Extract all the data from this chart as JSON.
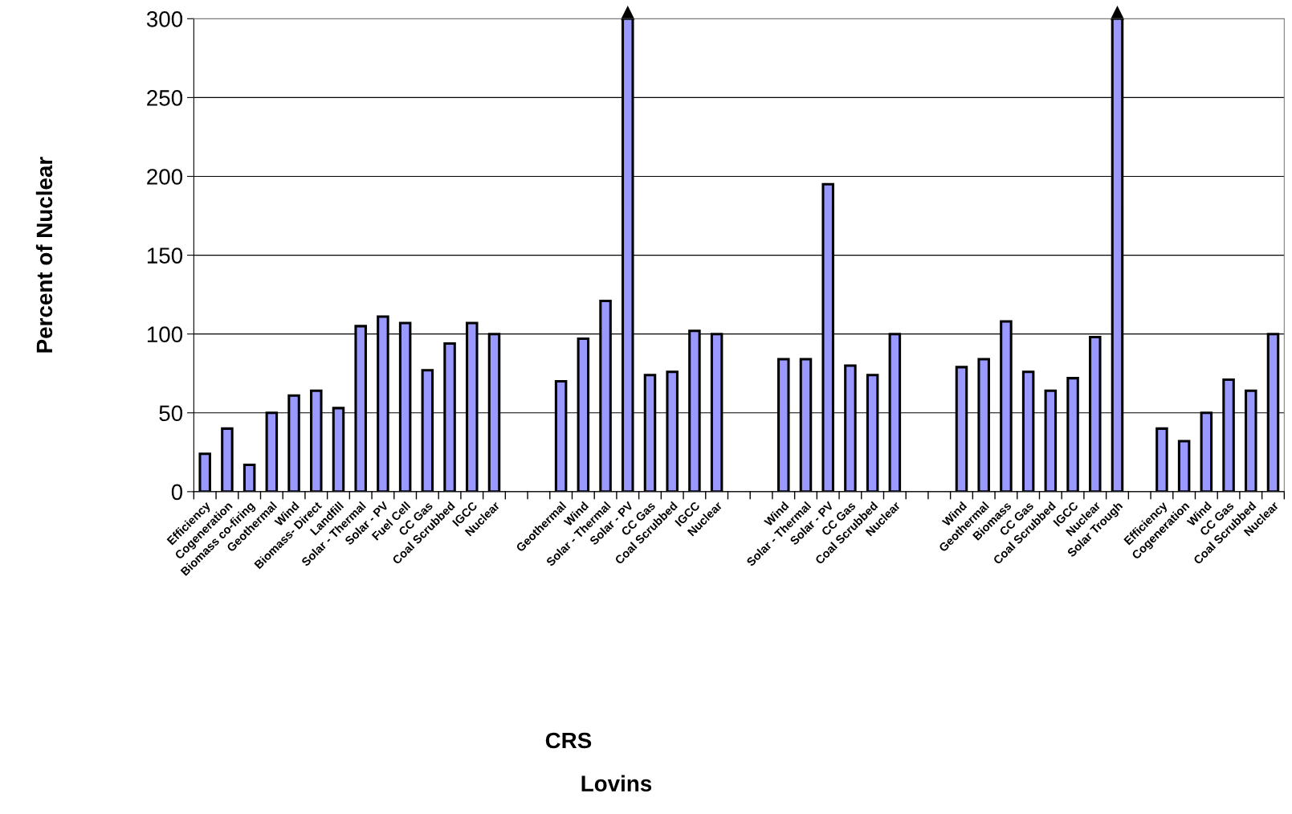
{
  "chart_data": {
    "type": "bar",
    "ylabel": "Percent of Nuclear",
    "categories": [
      "Efficiency",
      "Cogeneration",
      "Biomass co-firing",
      "Geothermal",
      "Wind",
      "Biomass- Direct",
      "Landfill",
      "Solar - Thermal",
      "Solar - PV",
      "Fuel Cell",
      "CC Gas",
      "Coal Scrubbed",
      "IGCC",
      "Nuclear",
      null,
      null,
      "Geothermal",
      "Wind",
      "Solar - Thermal",
      "Solar - PV",
      "CC Gas",
      "Coal Scrubbed",
      "IGCC",
      "Nuclear",
      null,
      null,
      "Wind",
      "Solar - Thermal",
      "Solar - PV",
      "CC Gas",
      "Coal Scrubbed",
      "Nuclear",
      null,
      null,
      "Wind",
      "Geothermal",
      "Biomass",
      "CC Gas",
      "Coal Scrubbed",
      "IGCC",
      "Nuclear",
      "Solar Trough",
      null,
      "Efficiency",
      "Cogeneration",
      "Wind",
      "CC Gas",
      "Coal Scrubbed",
      "Nuclear"
    ],
    "values": [
      24,
      40,
      17,
      50,
      61,
      64,
      53,
      105,
      111,
      107,
      77,
      94,
      107,
      100,
      null,
      null,
      70,
      97,
      121,
      300,
      74,
      76,
      102,
      100,
      null,
      null,
      84,
      84,
      195,
      80,
      74,
      100,
      null,
      null,
      79,
      84,
      108,
      76,
      64,
      72,
      98,
      300,
      null,
      40,
      32,
      50,
      71,
      64,
      100
    ],
    "color": "#9999ff",
    "ylim": [
      0,
      300
    ],
    "yticks": [
      0,
      50,
      100,
      150,
      200,
      250,
      300
    ],
    "grid": "y",
    "legend": false,
    "annotations": [
      "CRS",
      "Lovins"
    ]
  }
}
